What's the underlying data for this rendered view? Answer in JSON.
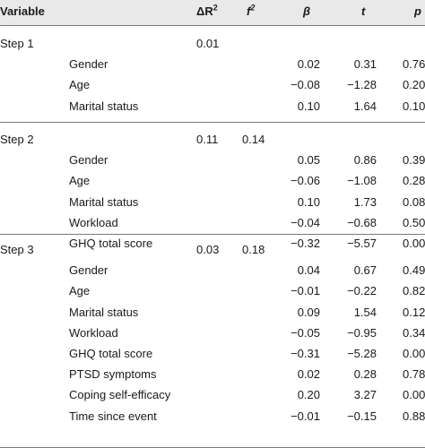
{
  "header": {
    "variable": "Variable",
    "delta_r2": "ΔR",
    "delta_r2_sup": "2",
    "f2": "f",
    "f2_sup": "2",
    "beta": "β",
    "t": "t",
    "p": "p"
  },
  "steps": [
    {
      "label": "Step 1",
      "delta_r2": "0.01",
      "f2": "",
      "rows": [
        {
          "variable": "Gender",
          "beta": "0.02",
          "t": "0.31",
          "p": "0.76"
        },
        {
          "variable": "Age",
          "beta": "−0.08",
          "t": "−1.28",
          "p": "0.20"
        },
        {
          "variable": "Marital status",
          "beta": "0.10",
          "t": "1.64",
          "p": "0.10"
        }
      ]
    },
    {
      "label": "Step 2",
      "delta_r2": "0.11",
      "f2": "0.14",
      "rows": [
        {
          "variable": "Gender",
          "beta": "0.05",
          "t": "0.86",
          "p": "0.39"
        },
        {
          "variable": "Age",
          "beta": "−0.06",
          "t": "−1.08",
          "p": "0.28"
        },
        {
          "variable": "Marital status",
          "beta": "0.10",
          "t": "1.73",
          "p": "0.08"
        },
        {
          "variable": "Workload",
          "beta": "−0.04",
          "t": "−0.68",
          "p": "0.50"
        },
        {
          "variable": "GHQ total score",
          "beta": "−0.32",
          "t": "−5.57",
          "p": "0.00"
        }
      ]
    },
    {
      "label": "Step 3",
      "delta_r2": "0.03",
      "f2": "0.18",
      "rows": [
        {
          "variable": "Gender",
          "beta": "0.04",
          "t": "0.67",
          "p": "0.49"
        },
        {
          "variable": "Age",
          "beta": "−0.01",
          "t": "−0.22",
          "p": "0.82"
        },
        {
          "variable": "Marital status",
          "beta": "0.09",
          "t": "1.54",
          "p": "0.12"
        },
        {
          "variable": "Workload",
          "beta": "−0.05",
          "t": "−0.95",
          "p": "0.34"
        },
        {
          "variable": "GHQ total score",
          "beta": "−0.31",
          "t": "−5.28",
          "p": "0.00"
        },
        {
          "variable": "PTSD symptoms",
          "beta": "0.02",
          "t": "0.28",
          "p": "0.78"
        },
        {
          "variable": "Coping self-efficacy",
          "beta": "0.20",
          "t": "3.27",
          "p": "0.00"
        },
        {
          "variable": "Time since event",
          "beta": "−0.01",
          "t": "−0.15",
          "p": "0.88"
        }
      ]
    }
  ]
}
